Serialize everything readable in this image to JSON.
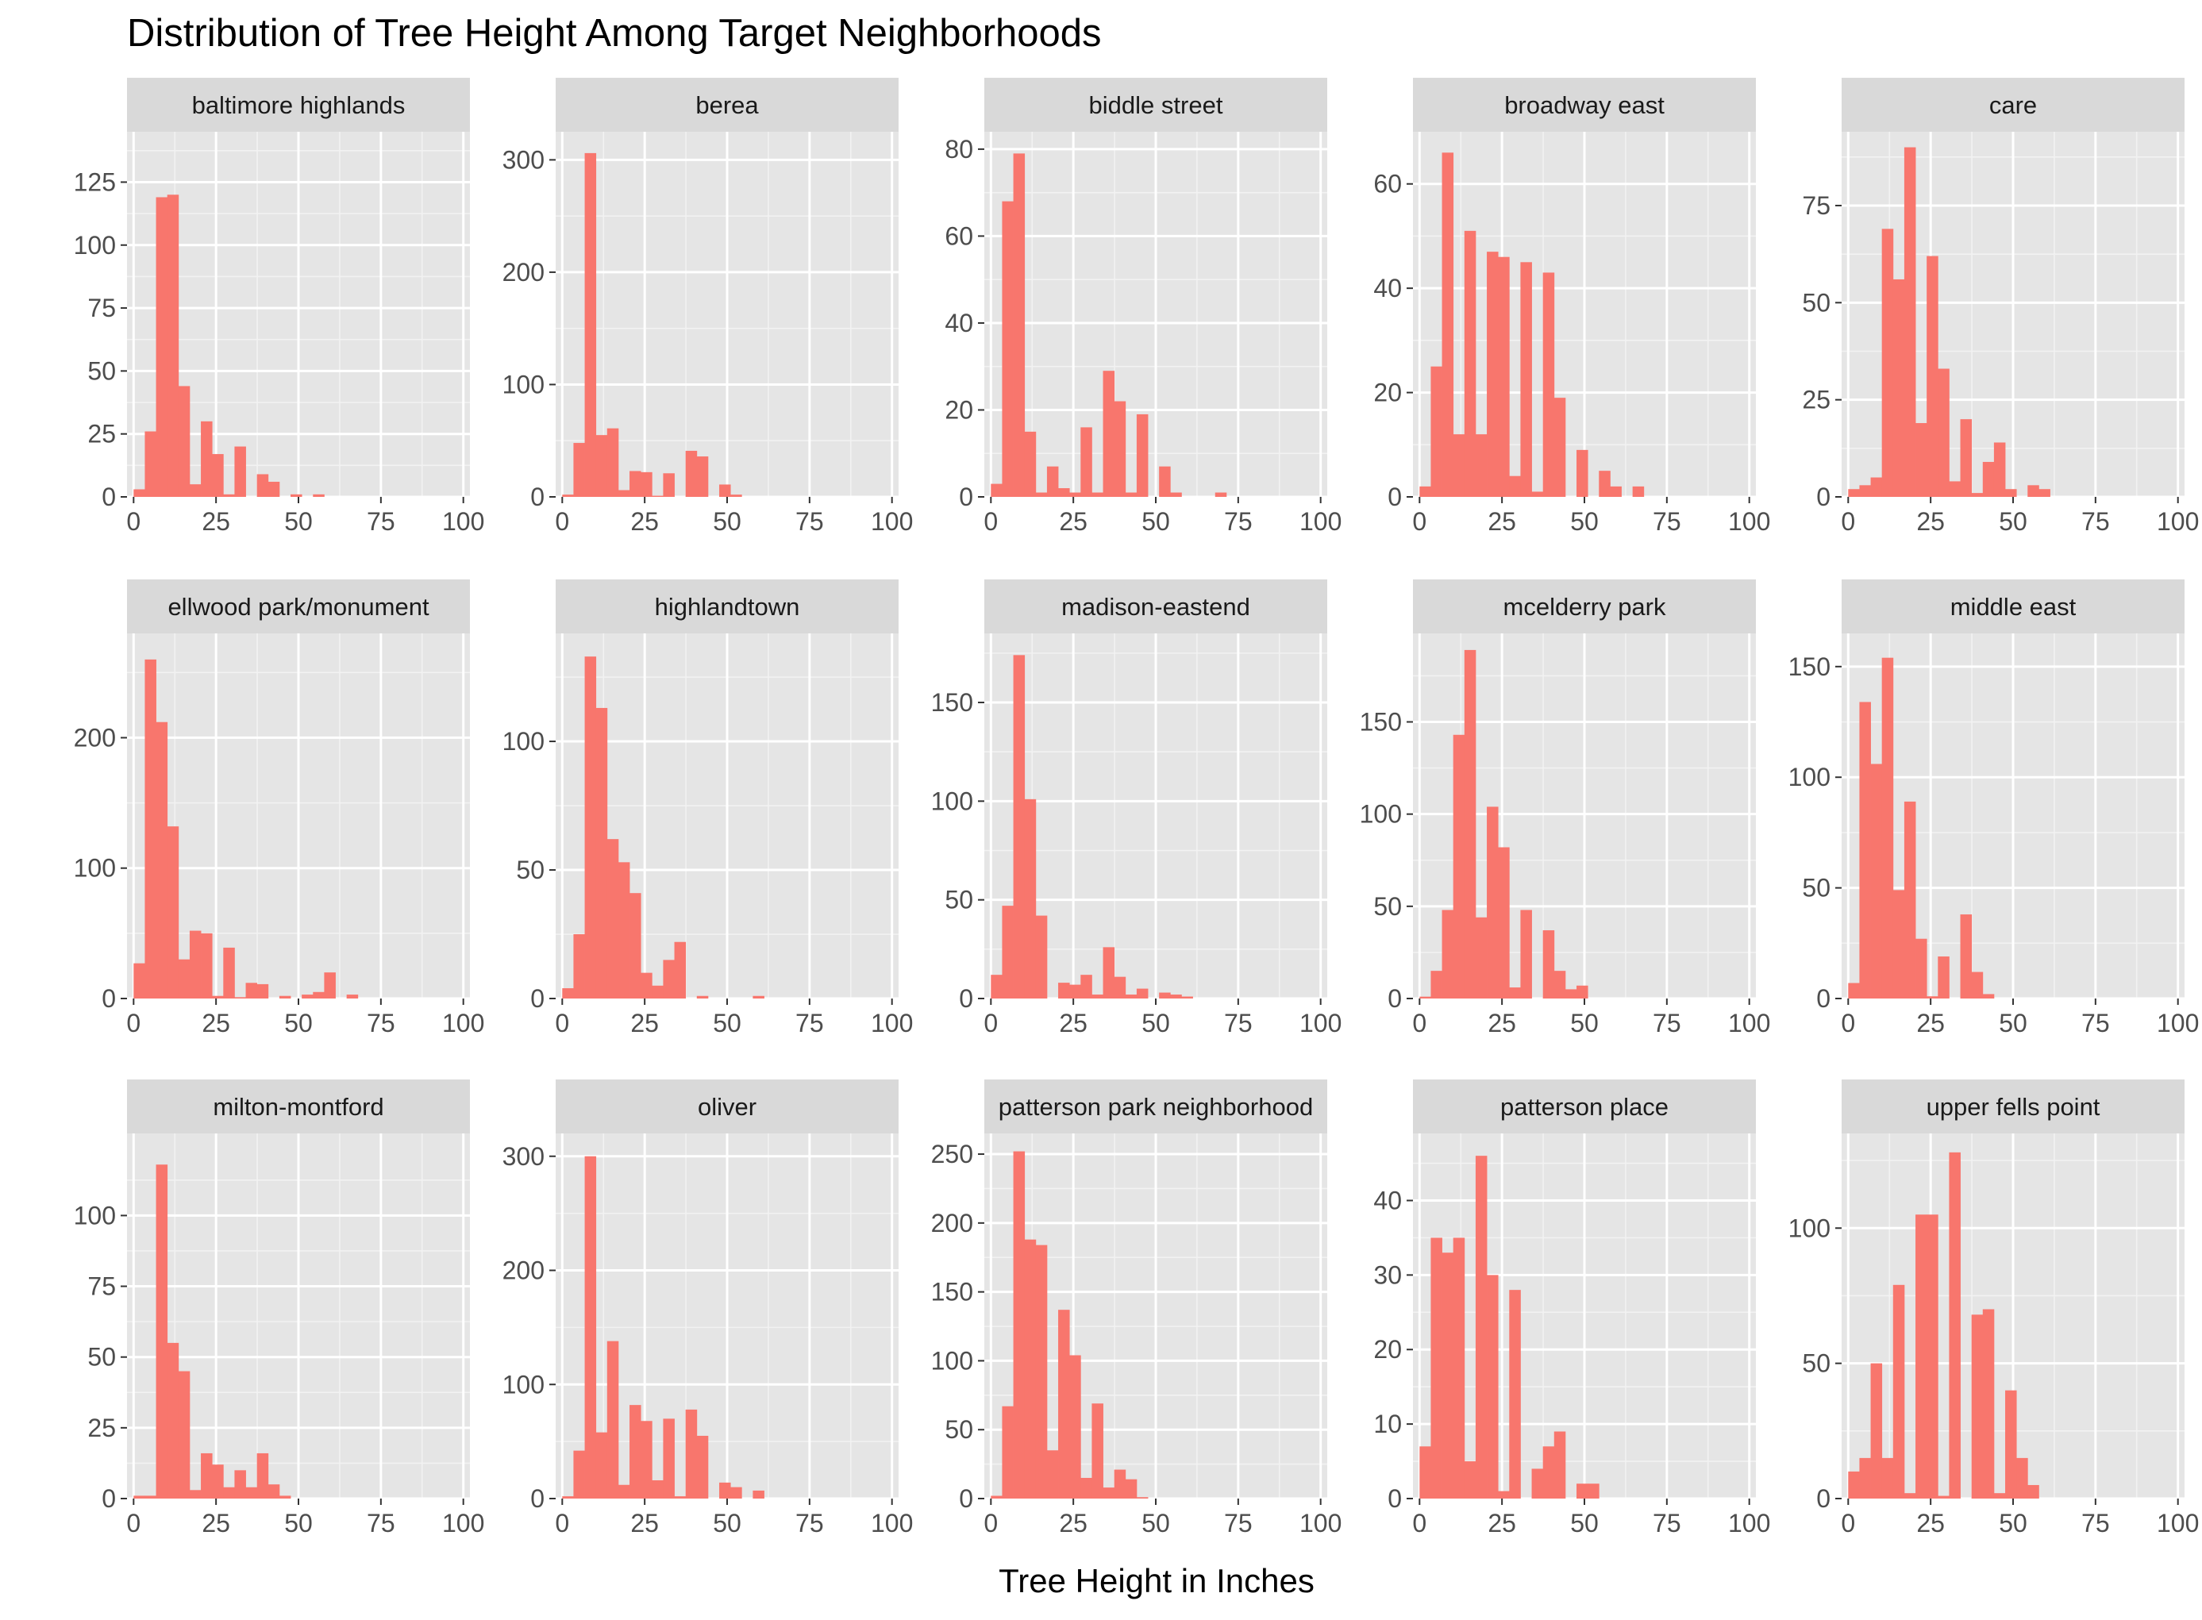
{
  "chart_data": {
    "type": "bar",
    "title": "Distribution of Tree Height Among Target Neighborhoods",
    "xlabel": "Tree Height in Inches",
    "ylabel": "",
    "bar_color": "#F8766D",
    "panel_background": "#E5E5E5",
    "strip_background": "#D9D9D9",
    "grid": true,
    "bin_width": 3.4,
    "bin_start": 0,
    "x_ticks": [
      0,
      25,
      50,
      75,
      100
    ],
    "xlim": [
      -2,
      102
    ],
    "facets": [
      {
        "name": "baltimore highlands",
        "ylim": [
          0,
          145
        ],
        "y_ticks": [
          0,
          25,
          50,
          75,
          100,
          125
        ],
        "values": [
          3,
          26,
          119,
          120,
          44,
          5,
          30,
          17,
          1,
          20,
          0,
          9,
          6,
          0,
          1,
          0,
          1,
          0,
          0,
          0,
          0,
          0,
          0,
          0,
          0,
          0,
          0,
          0,
          0,
          0
        ]
      },
      {
        "name": "berea",
        "ylim": [
          0,
          325
        ],
        "y_ticks": [
          0,
          100,
          200,
          300
        ],
        "values": [
          2,
          48,
          306,
          55,
          61,
          6,
          23,
          22,
          1,
          21,
          0,
          41,
          36,
          0,
          11,
          2,
          0,
          0,
          0,
          0,
          0,
          0,
          0,
          0,
          0,
          0,
          0,
          0,
          0,
          0
        ]
      },
      {
        "name": "biddle street",
        "ylim": [
          0,
          84
        ],
        "y_ticks": [
          0,
          20,
          40,
          60,
          80
        ],
        "values": [
          3,
          68,
          79,
          15,
          1,
          7,
          2,
          1,
          16,
          1,
          29,
          22,
          1,
          19,
          0,
          7,
          1,
          0,
          0,
          0,
          1,
          0,
          0,
          0,
          0,
          0,
          0,
          0,
          0,
          0
        ]
      },
      {
        "name": "broadway east",
        "ylim": [
          0,
          70
        ],
        "y_ticks": [
          0,
          20,
          40,
          60
        ],
        "values": [
          2,
          25,
          66,
          12,
          51,
          12,
          47,
          46,
          4,
          45,
          1,
          43,
          19,
          0,
          9,
          0,
          5,
          2,
          0,
          2,
          0,
          0,
          0,
          0,
          0,
          0,
          0,
          0,
          0,
          0
        ]
      },
      {
        "name": "care",
        "ylim": [
          0,
          94
        ],
        "y_ticks": [
          0,
          25,
          50,
          75
        ],
        "values": [
          2,
          3,
          5,
          69,
          56,
          90,
          19,
          62,
          33,
          4,
          20,
          1,
          9,
          14,
          2,
          0,
          3,
          2,
          0,
          0,
          0,
          0,
          0,
          0,
          0,
          0,
          0,
          0,
          0,
          0
        ]
      },
      {
        "name": "ellwood park/monument",
        "ylim": [
          0,
          280
        ],
        "y_ticks": [
          0,
          100,
          200
        ],
        "values": [
          27,
          260,
          212,
          132,
          30,
          52,
          50,
          2,
          39,
          1,
          12,
          11,
          0,
          2,
          0,
          3,
          5,
          20,
          0,
          3,
          0,
          0,
          0,
          0,
          0,
          0,
          0,
          0,
          0,
          0
        ]
      },
      {
        "name": "highlandtown",
        "ylim": [
          0,
          142
        ],
        "y_ticks": [
          0,
          50,
          100
        ],
        "values": [
          4,
          25,
          133,
          113,
          62,
          53,
          41,
          10,
          5,
          15,
          22,
          0,
          1,
          0,
          0,
          0,
          0,
          1,
          0,
          0,
          0,
          0,
          0,
          0,
          0,
          0,
          0,
          0,
          0,
          0
        ]
      },
      {
        "name": "madison-eastend",
        "ylim": [
          0,
          185
        ],
        "y_ticks": [
          0,
          50,
          100,
          150
        ],
        "values": [
          12,
          47,
          174,
          101,
          42,
          0,
          8,
          7,
          12,
          2,
          26,
          11,
          2,
          5,
          0,
          3,
          2,
          1,
          0,
          0,
          0,
          0,
          0,
          0,
          0,
          0,
          0,
          0,
          0,
          0
        ]
      },
      {
        "name": "mcelderry park",
        "ylim": [
          0,
          198
        ],
        "y_ticks": [
          0,
          50,
          100,
          150
        ],
        "values": [
          1,
          15,
          48,
          143,
          189,
          44,
          104,
          82,
          6,
          48,
          0,
          37,
          15,
          5,
          7,
          0,
          0,
          0,
          0,
          0,
          0,
          0,
          0,
          0,
          0,
          0,
          0,
          0,
          0,
          0
        ]
      },
      {
        "name": "middle east",
        "ylim": [
          0,
          165
        ],
        "y_ticks": [
          0,
          50,
          100,
          150
        ],
        "values": [
          7,
          134,
          106,
          154,
          49,
          89,
          27,
          1,
          19,
          0,
          38,
          12,
          2,
          0,
          0,
          0,
          0,
          0,
          0,
          0,
          0,
          0,
          0,
          0,
          0,
          0,
          0,
          0,
          0,
          0
        ]
      },
      {
        "name": "milton-montford",
        "ylim": [
          0,
          129
        ],
        "y_ticks": [
          0,
          25,
          50,
          75,
          100
        ],
        "values": [
          1,
          1,
          118,
          55,
          45,
          3,
          16,
          12,
          4,
          10,
          4,
          16,
          5,
          1,
          0,
          0,
          0,
          0,
          0,
          0,
          0,
          0,
          0,
          0,
          0,
          0,
          0,
          0,
          0,
          0
        ]
      },
      {
        "name": "oliver",
        "ylim": [
          0,
          320
        ],
        "y_ticks": [
          0,
          100,
          200,
          300
        ],
        "values": [
          2,
          42,
          300,
          58,
          138,
          12,
          82,
          68,
          16,
          70,
          2,
          78,
          55,
          0,
          14,
          10,
          0,
          7,
          0,
          0,
          0,
          0,
          0,
          0,
          0,
          0,
          0,
          0,
          0,
          0
        ]
      },
      {
        "name": "patterson park neighborhood",
        "ylim": [
          0,
          265
        ],
        "y_ticks": [
          0,
          50,
          100,
          150,
          200,
          250
        ],
        "values": [
          2,
          67,
          252,
          188,
          184,
          35,
          137,
          104,
          15,
          69,
          8,
          21,
          14,
          1,
          0,
          0,
          0,
          0,
          0,
          0,
          0,
          0,
          0,
          0,
          0,
          0,
          0,
          0,
          0,
          0
        ]
      },
      {
        "name": "patterson place",
        "ylim": [
          0,
          49
        ],
        "y_ticks": [
          0,
          10,
          20,
          30,
          40
        ],
        "values": [
          7,
          35,
          33,
          35,
          5,
          46,
          30,
          1,
          28,
          0,
          4,
          7,
          9,
          0,
          2,
          2,
          0,
          0,
          0,
          0,
          0,
          0,
          0,
          0,
          0,
          0,
          0,
          0,
          0,
          0
        ]
      },
      {
        "name": "upper fells point",
        "ylim": [
          0,
          135
        ],
        "y_ticks": [
          0,
          50,
          100
        ],
        "values": [
          10,
          15,
          50,
          15,
          79,
          2,
          105,
          105,
          1,
          128,
          0,
          68,
          70,
          2,
          40,
          15,
          5,
          0,
          0,
          0,
          0,
          0,
          0,
          0,
          0,
          0,
          0,
          0,
          0,
          0
        ]
      }
    ]
  }
}
